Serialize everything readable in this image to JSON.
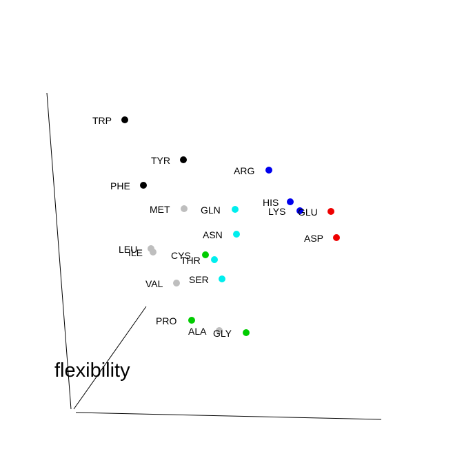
{
  "chart_data": {
    "type": "scatter",
    "projection": "3d",
    "axis_labels": [
      "flexibility"
    ],
    "grid": false,
    "colors": {
      "black": "#000000",
      "blue": "#0000ee",
      "red": "#ee0000",
      "cyan": "#00eeee",
      "green": "#00cc00",
      "gray": "#bebebe"
    },
    "points": [
      {
        "label": "TRP",
        "color": "black"
      },
      {
        "label": "TYR",
        "color": "black"
      },
      {
        "label": "PHE",
        "color": "black"
      },
      {
        "label": "ARG",
        "color": "blue"
      },
      {
        "label": "HIS",
        "color": "blue"
      },
      {
        "label": "LYS",
        "color": "blue"
      },
      {
        "label": "GLU",
        "color": "red"
      },
      {
        "label": "ASP",
        "color": "red"
      },
      {
        "label": "MET",
        "color": "gray"
      },
      {
        "label": "GLN",
        "color": "cyan"
      },
      {
        "label": "ASN",
        "color": "cyan"
      },
      {
        "label": "LEU",
        "color": "gray"
      },
      {
        "label": "ILE",
        "color": "gray"
      },
      {
        "label": "CYS",
        "color": "green"
      },
      {
        "label": "THR",
        "color": "cyan"
      },
      {
        "label": "SER",
        "color": "cyan"
      },
      {
        "label": "VAL",
        "color": "gray"
      },
      {
        "label": "PRO",
        "color": "green"
      },
      {
        "label": "ALA",
        "color": "gray"
      },
      {
        "label": "GLY",
        "color": "green"
      }
    ]
  }
}
